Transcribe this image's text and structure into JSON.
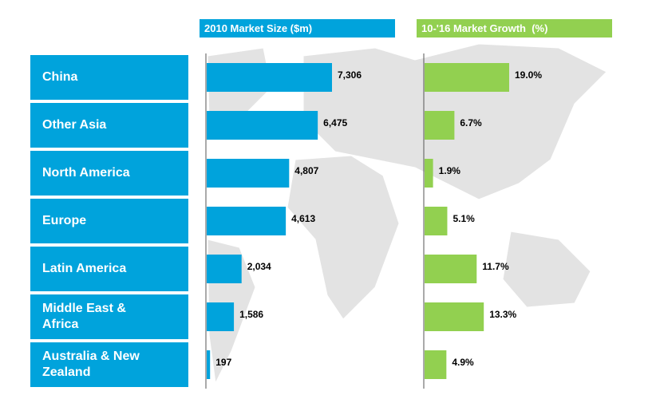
{
  "chart_data": {
    "type": "bar",
    "categories": [
      "China",
      "Other Asia",
      "North America",
      "Europe",
      "Latin America",
      "Middle East & Africa",
      "Australia & New Zealand"
    ],
    "series": [
      {
        "name": "2010 Market Size ($m)",
        "color": "#00a3dc",
        "values": [
          7306,
          6475,
          4807,
          4613,
          2034,
          1586,
          197
        ],
        "value_labels": [
          "7,306",
          "6,475",
          "4,807",
          "4,613",
          "2,034",
          "1,586",
          "197"
        ]
      },
      {
        "name": "10-'16 Market Growth  (%)",
        "color": "#92d050",
        "values": [
          19.0,
          6.7,
          1.9,
          5.1,
          11.7,
          13.3,
          4.9
        ],
        "value_labels": [
          "19.0%",
          "6.7%",
          "1.9%",
          "5.1%",
          "11.7%",
          "13.3%",
          "4.9%"
        ]
      }
    ]
  }
}
